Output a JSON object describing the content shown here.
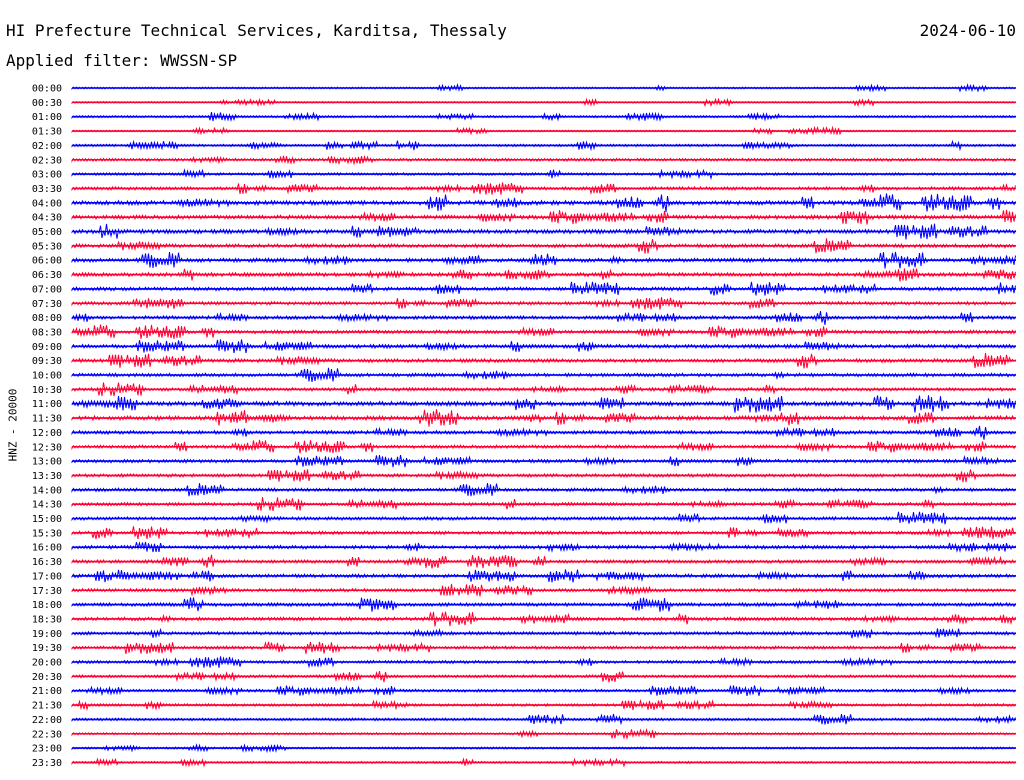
{
  "header": {
    "title": "HI Prefecture Technical Services, Karditsa, Thessaly",
    "filter": "Applied filter: WWSSN-SP",
    "date": "2024-06-10"
  },
  "chart_data": {
    "type": "line",
    "title": "HI Prefecture Technical Services, Karditsa, Thessaly",
    "subtitle": "Applied filter: WWSSN-SP",
    "date": "2024-06-10",
    "ylabel": "HNZ - 20000",
    "xlabel": "",
    "colors": {
      "even_rows": "#0000ff",
      "odd_rows": "#ff0033"
    },
    "categories": [
      "00:00",
      "00:30",
      "01:00",
      "01:30",
      "02:00",
      "02:30",
      "03:00",
      "03:30",
      "04:00",
      "04:30",
      "05:00",
      "05:30",
      "06:00",
      "06:30",
      "07:00",
      "07:30",
      "08:00",
      "08:30",
      "09:00",
      "09:30",
      "10:00",
      "10:30",
      "11:00",
      "11:30",
      "12:00",
      "12:30",
      "13:00",
      "13:30",
      "14:00",
      "14:30",
      "15:00",
      "15:30",
      "16:00",
      "16:30",
      "17:00",
      "17:30",
      "18:00",
      "18:30",
      "19:00",
      "19:30",
      "20:00",
      "20:30",
      "21:00",
      "21:30",
      "22:00",
      "22:30",
      "23:00",
      "23:30"
    ],
    "activity": [
      0.15,
      0.1,
      0.2,
      0.1,
      0.25,
      0.35,
      0.3,
      0.45,
      0.7,
      0.6,
      0.65,
      0.55,
      0.6,
      0.6,
      0.5,
      0.45,
      0.5,
      0.5,
      0.55,
      0.55,
      0.5,
      0.45,
      0.7,
      0.65,
      0.5,
      0.45,
      0.45,
      0.45,
      0.45,
      0.45,
      0.45,
      0.45,
      0.5,
      0.45,
      0.5,
      0.45,
      0.5,
      0.5,
      0.45,
      0.4,
      0.4,
      0.35,
      0.35,
      0.3,
      0.3,
      0.2,
      0.2,
      0.2
    ]
  }
}
